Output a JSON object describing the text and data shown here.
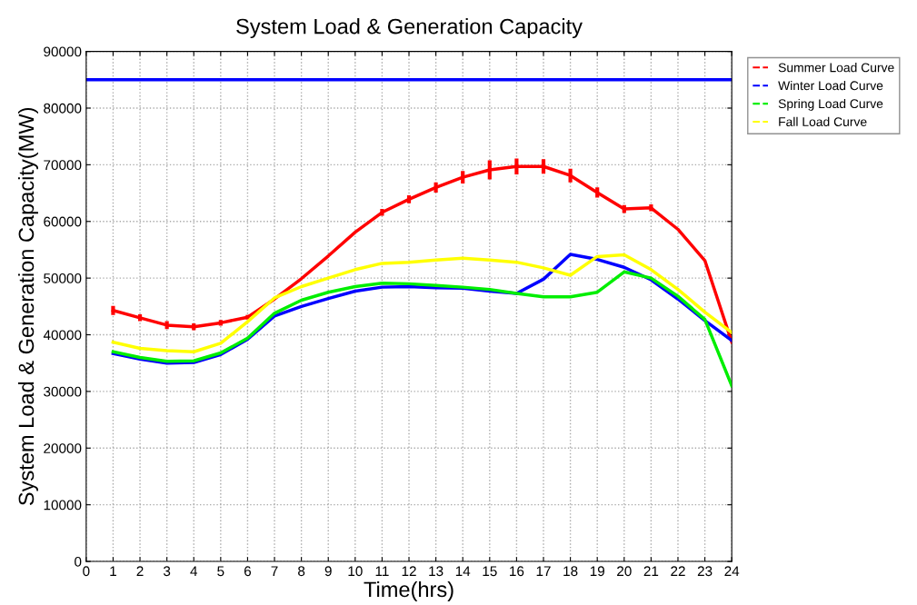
{
  "chart_data": {
    "type": "line",
    "title": "System Load & Generation Capacity",
    "xlabel": "Time(hrs)",
    "ylabel": "System Load & Generation Capacity(MW)",
    "x": [
      1,
      2,
      3,
      4,
      5,
      6,
      7,
      8,
      9,
      10,
      11,
      12,
      13,
      14,
      15,
      16,
      17,
      18,
      19,
      20,
      21,
      22,
      23,
      24
    ],
    "series": [
      {
        "name": "Summer Load Curve",
        "color": "#ff0000",
        "values": [
          44300,
          43000,
          41700,
          41400,
          42100,
          43100,
          46300,
          49900,
          53900,
          58100,
          61600,
          63900,
          66000,
          67800,
          69100,
          69700,
          69700,
          68100,
          65100,
          62200,
          62400,
          58600,
          53100,
          38700
        ],
        "errors": [
          800,
          600,
          700,
          600,
          500,
          400,
          null,
          null,
          null,
          null,
          600,
          700,
          900,
          1100,
          1700,
          1400,
          1300,
          1200,
          900,
          700,
          600,
          null,
          null,
          null
        ]
      },
      {
        "name": "Winter Load Curve",
        "color": "#0000ff",
        "values": [
          36700,
          35700,
          35000,
          35100,
          36500,
          39200,
          43300,
          45000,
          46400,
          47700,
          48400,
          48500,
          48300,
          48200,
          47700,
          47300,
          49800,
          54200,
          53300,
          51900,
          49700,
          46300,
          42500,
          39000
        ]
      },
      {
        "name": "Spring Load Curve",
        "color": "#00ee00",
        "values": [
          37000,
          36000,
          35300,
          35400,
          36800,
          39400,
          43800,
          46100,
          47500,
          48500,
          49100,
          49000,
          48700,
          48400,
          48000,
          47300,
          46700,
          46700,
          47500,
          51100,
          50000,
          46800,
          42700,
          31000
        ]
      },
      {
        "name": "Fall Load Curve",
        "color": "#ffff00",
        "values": [
          38700,
          37600,
          37200,
          37000,
          38500,
          42300,
          46500,
          48500,
          50000,
          51500,
          52600,
          52800,
          53200,
          53500,
          53200,
          52800,
          51800,
          50500,
          53800,
          54100,
          51500,
          48000,
          44000,
          40400
        ]
      }
    ],
    "ref_lines": [
      {
        "axis": "y",
        "value": 85000,
        "color": "#0000ff",
        "line_style": "solid"
      }
    ],
    "xlim": [
      0,
      24
    ],
    "xticks": [
      0,
      1,
      2,
      3,
      4,
      5,
      6,
      7,
      8,
      9,
      10,
      11,
      12,
      13,
      14,
      15,
      16,
      17,
      18,
      19,
      20,
      21,
      22,
      23,
      24
    ],
    "ylim": [
      0,
      90000
    ],
    "yticks": [
      0,
      10000,
      20000,
      30000,
      40000,
      50000,
      60000,
      70000,
      80000,
      90000
    ],
    "grid": true,
    "legend": "top right",
    "line_style": "solid",
    "marker": "none"
  }
}
